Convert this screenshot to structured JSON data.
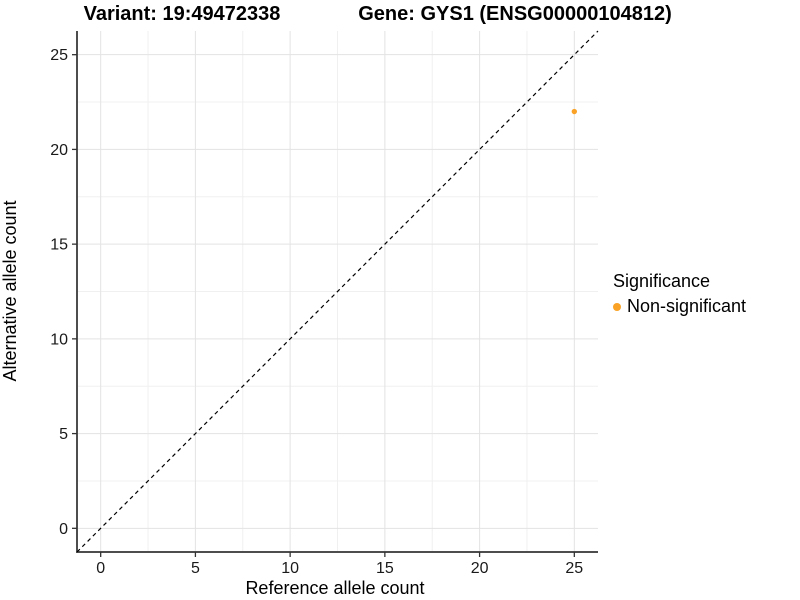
{
  "chart_data": {
    "type": "scatter",
    "title_left": "Variant: 19:49472338",
    "title_right": "Gene: GYS1 (ENSG00000104812)",
    "xlabel": "Reference allele count",
    "ylabel": "Alternative allele count",
    "xlim": [
      -1.25,
      26.25
    ],
    "ylim": [
      -1.25,
      26.25
    ],
    "x_ticks": [
      0,
      5,
      10,
      15,
      20,
      25
    ],
    "y_ticks": [
      0,
      5,
      10,
      15,
      20,
      25
    ],
    "x_minor_ticks": [
      2.5,
      7.5,
      12.5,
      17.5,
      22.5
    ],
    "y_minor_ticks": [
      2.5,
      7.5,
      12.5,
      17.5,
      22.5
    ],
    "grid": "major and minor gridlines on white panel",
    "points": [
      {
        "x": 25,
        "y": 22,
        "series": "Non-significant",
        "color": "#F9A225"
      }
    ],
    "reference_line": {
      "type": "identity y=x",
      "style": "dashed",
      "color": "#000000",
      "from": [
        -1.25,
        -1.25
      ],
      "to": [
        26.25,
        26.25
      ]
    },
    "legend": {
      "title": "Significance",
      "position": "right",
      "entries": [
        {
          "label": "Non-significant",
          "color": "#F9A225",
          "marker": "circle"
        }
      ]
    },
    "colors": {
      "point_orange": "#F9A225",
      "axis_line": "#4d4d4d",
      "tick_mark": "#333333",
      "grid_major": "#e3e3e3",
      "grid_minor": "#f0f0f0",
      "dashed_line": "#000000"
    }
  }
}
